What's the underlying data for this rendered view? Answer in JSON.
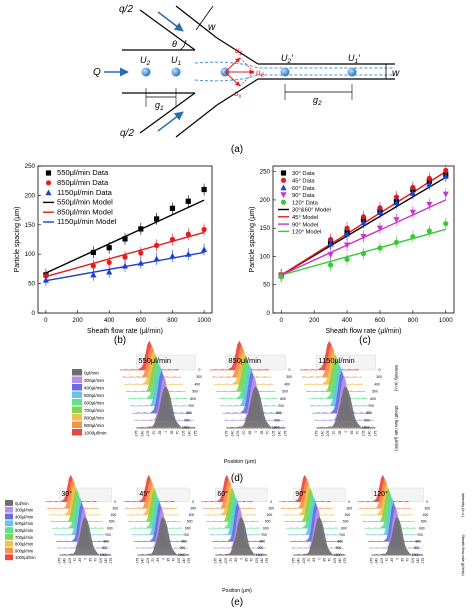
{
  "panel_a": {
    "label": "(a)",
    "sym_q2_top": "q/2",
    "sym_q2_bottom": "q/2",
    "sym_w_top": "w",
    "sym_w_right": "w",
    "sym_theta": "θ",
    "sym_Q": "Q",
    "sym_U2": "U",
    "sym_U2_sub": "2",
    "sym_U1": "U",
    "sym_U1_sub": "1",
    "sym_U2p": "U",
    "sym_U2p_sub": "2",
    "sym_U2p_mark": "′",
    "sym_U1p": "U",
    "sym_U1p_sub": "1",
    "sym_U1p_mark": "′",
    "sym_g1": "g",
    "sym_g1_sub": "1",
    "sym_g2": "g",
    "sym_g2_sub": "2",
    "sym_ux": "u",
    "sym_ux_sub": "x",
    "sym_uz": "u",
    "sym_uz_sub": "z",
    "sym_ub": "u",
    "sym_ub_sub": "θ"
  },
  "chart_data": [
    {
      "type": "scatter",
      "panel": "(b)",
      "xlabel": "Sheath flow rate (μl/min)",
      "ylabel": "Particle spacing (μm)",
      "xlim": [
        -50,
        1050
      ],
      "ylim": [
        0,
        250
      ],
      "xticks": [
        "0",
        "200",
        "400",
        "600",
        "800",
        "1000"
      ],
      "yticks": [
        "0",
        "50",
        "100",
        "150",
        "200",
        "250"
      ],
      "legend_position": "top-left",
      "series": [
        {
          "name": "550μl/min Data",
          "color": "#000000",
          "marker": "square",
          "x": [
            0,
            300,
            400,
            500,
            600,
            700,
            800,
            900,
            1000
          ],
          "y": [
            65,
            103,
            111,
            126,
            143,
            160,
            178,
            190,
            210
          ]
        },
        {
          "name": "850μl/min Data",
          "color": "#e41a1c",
          "marker": "circle",
          "x": [
            0,
            300,
            400,
            500,
            600,
            700,
            800,
            900,
            1000
          ],
          "y": [
            63,
            80,
            86,
            95,
            102,
            115,
            125,
            134,
            142
          ]
        },
        {
          "name": "1150μl/min Data",
          "color": "#1f3fcf",
          "marker": "triangle",
          "x": [
            0,
            300,
            400,
            500,
            600,
            700,
            800,
            900,
            1000
          ],
          "y": [
            56,
            65,
            70,
            80,
            85,
            92,
            97,
            100,
            108
          ]
        },
        {
          "name": "550μl/min Model",
          "color": "#000000",
          "type": "line",
          "x": [
            0,
            1000
          ],
          "y": [
            68,
            192
          ]
        },
        {
          "name": "850μl/min Model",
          "color": "#e41a1c",
          "type": "line",
          "x": [
            0,
            1000
          ],
          "y": [
            62,
            137
          ]
        },
        {
          "name": "1150μl/min Model",
          "color": "#1f3fcf",
          "type": "line",
          "x": [
            0,
            1000
          ],
          "y": [
            55,
            103
          ]
        }
      ]
    },
    {
      "type": "scatter",
      "panel": "(c)",
      "xlabel": "Sheath flow rate (μl/min)",
      "ylabel": "Particle spacing (μm)",
      "xlim": [
        -50,
        1050
      ],
      "ylim": [
        0,
        260
      ],
      "xticks": [
        "0",
        "200",
        "400",
        "600",
        "800",
        "1000"
      ],
      "yticks": [
        "0",
        "50",
        "100",
        "150",
        "200",
        "250"
      ],
      "legend_position": "top-left",
      "series": [
        {
          "name": "30° Data",
          "color": "#000000",
          "marker": "square",
          "x": [
            0,
            300,
            400,
            500,
            600,
            700,
            800,
            900,
            1000
          ],
          "y": [
            67,
            125,
            143,
            165,
            180,
            197,
            218,
            233,
            245
          ]
        },
        {
          "name": "45° Data",
          "color": "#e41a1c",
          "marker": "circle",
          "x": [
            0,
            300,
            400,
            500,
            600,
            700,
            800,
            900,
            1000
          ],
          "y": [
            68,
            130,
            150,
            170,
            186,
            205,
            222,
            238,
            252
          ]
        },
        {
          "name": "60° Data",
          "color": "#1f3fcf",
          "marker": "triangle",
          "x": [
            0,
            300,
            400,
            500,
            600,
            700,
            800,
            900,
            1000
          ],
          "y": [
            66,
            122,
            140,
            160,
            178,
            195,
            212,
            228,
            242
          ]
        },
        {
          "name": "90° Data",
          "color": "#cc33cc",
          "marker": "triangle-down",
          "x": [
            0,
            300,
            400,
            500,
            600,
            700,
            800,
            900,
            1000
          ],
          "y": [
            66,
            103,
            120,
            135,
            150,
            165,
            178,
            192,
            210
          ]
        },
        {
          "name": "120° Data",
          "color": "#33cc33",
          "marker": "circle",
          "x": [
            0,
            300,
            400,
            500,
            600,
            700,
            800,
            900,
            1000
          ],
          "y": [
            64,
            85,
            95,
            105,
            115,
            125,
            135,
            145,
            158
          ]
        },
        {
          "name": "30°&60° Model",
          "color": "#000000",
          "type": "line",
          "x": [
            0,
            1000
          ],
          "y": [
            67,
            240
          ]
        },
        {
          "name": "45° Model",
          "color": "#e41a1c",
          "type": "line",
          "x": [
            0,
            1000
          ],
          "y": [
            67,
            250
          ]
        },
        {
          "name": "90° Model",
          "color": "#cc33cc",
          "type": "line",
          "x": [
            0,
            1000
          ],
          "y": [
            67,
            200
          ]
        },
        {
          "name": "120° Model",
          "color": "#33cc33",
          "type": "line",
          "x": [
            0,
            1000
          ],
          "y": [
            67,
            148
          ]
        }
      ]
    }
  ],
  "panel_b": {
    "label": "(b)"
  },
  "panel_c": {
    "label": "(c)"
  },
  "panel_d": {
    "label": "(d)",
    "legend": [
      {
        "label": "0μl/min",
        "color": "#6e6e6e"
      },
      {
        "label": "300μl/min",
        "color": "#b98ee8"
      },
      {
        "label": "400μl/min",
        "color": "#6b6bdf"
      },
      {
        "label": "500μl/min",
        "color": "#62c7e6"
      },
      {
        "label": "600μl/min",
        "color": "#5fe08f"
      },
      {
        "label": "700μl/min",
        "color": "#7fd64f"
      },
      {
        "label": "800μl/min",
        "color": "#f4c04d"
      },
      {
        "label": "900μl/min",
        "color": "#f6924a"
      },
      {
        "label": "1000μl/min",
        "color": "#e8483e"
      }
    ],
    "plots": [
      {
        "title": "550μl/min"
      },
      {
        "title": "850μl/min"
      },
      {
        "title": "1150μl/min"
      }
    ],
    "xticks": [
      "-175",
      "-140",
      "-105",
      "-70",
      "-35",
      "0",
      "35",
      "70",
      "105",
      "140",
      "175"
    ],
    "depth_ticks": [
      "0",
      "300",
      "400",
      "500",
      "600",
      "700",
      "800",
      "900",
      "1000"
    ],
    "xlabel": "Position (μm)",
    "zlabel": "Intensity (a.u.)",
    "ylabel": "Sheath flow rate (μl/min)"
  },
  "panel_e": {
    "label": "(e)",
    "legend": [
      {
        "label": "0μl/min",
        "color": "#6e6e6e"
      },
      {
        "label": "300μl/min",
        "color": "#b98ee8"
      },
      {
        "label": "400μl/min",
        "color": "#6b6bdf"
      },
      {
        "label": "500μl/min",
        "color": "#62c7e6"
      },
      {
        "label": "600μl/min",
        "color": "#5fe08f"
      },
      {
        "label": "700μl/min",
        "color": "#7fd64f"
      },
      {
        "label": "800μl/min",
        "color": "#f4c04d"
      },
      {
        "label": "900μl/min",
        "color": "#f6924a"
      },
      {
        "label": "1000μl/min",
        "color": "#e8483e"
      }
    ],
    "plots": [
      {
        "title": "30°"
      },
      {
        "title": "45°"
      },
      {
        "title": "60°"
      },
      {
        "title": "90°"
      },
      {
        "title": "120°"
      }
    ],
    "xticks": [
      "-175",
      "-140",
      "-105",
      "-70",
      "-35",
      "0",
      "35",
      "70",
      "105",
      "140",
      "175"
    ],
    "depth_ticks": [
      "0",
      "300",
      "400",
      "500",
      "600",
      "700",
      "800",
      "900",
      "1000"
    ],
    "xlabel": "Position (μm)",
    "zlabel": "Intensity (a.u.)",
    "ylabel": "Sheath flow rate (μl/min)"
  }
}
